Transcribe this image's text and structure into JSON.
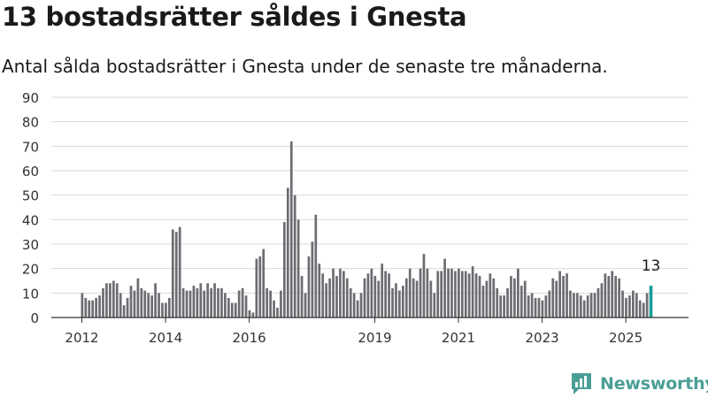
{
  "title": "13 bostadsrätter såldes i Gnesta",
  "subtitle": "Antal sålda bostadsrätter i Gnesta under de senaste tre månaderna.",
  "brand": "Newsworthy",
  "chart_data": {
    "type": "bar",
    "y_ticks": [
      0,
      10,
      20,
      30,
      40,
      50,
      60,
      70,
      80,
      90
    ],
    "ylim": [
      0,
      90
    ],
    "x_tick_labels": [
      "2012",
      "2014",
      "2016",
      "2019",
      "2021",
      "2023",
      "2025"
    ],
    "grid": true,
    "colors": {
      "bar": "#6d6c72",
      "highlight": "#1a9c96",
      "grid": "#d9d9d9",
      "brand": "#4a9e95"
    },
    "series": [
      {
        "start": "2012-01",
        "values": [
          10,
          8,
          7,
          7,
          8,
          9,
          12,
          14,
          14,
          15,
          14,
          10,
          5,
          8,
          13,
          11,
          16,
          12,
          11,
          10,
          9,
          14,
          10,
          6,
          6,
          8,
          36,
          35,
          37,
          12,
          11,
          11,
          13,
          12,
          14,
          11,
          14,
          12,
          14,
          12,
          12,
          10,
          8,
          6,
          6,
          11,
          12,
          9,
          3,
          2,
          24,
          25,
          28,
          12,
          11,
          7,
          4,
          11,
          39,
          53,
          72,
          50,
          40,
          17,
          10,
          25,
          31,
          42,
          22,
          18,
          14,
          16,
          20,
          17,
          20,
          19,
          16,
          12,
          10,
          7,
          10,
          16,
          18,
          20,
          17,
          15,
          22,
          19,
          18,
          12,
          14,
          11,
          13,
          16,
          20,
          16,
          15,
          20,
          26,
          20,
          15,
          10,
          19,
          19,
          24,
          20,
          20,
          19,
          20,
          19,
          19,
          18,
          21,
          18,
          17,
          13,
          15,
          18,
          16,
          12,
          9,
          9,
          12,
          17,
          16,
          20,
          13,
          15,
          9,
          10,
          8,
          8,
          7,
          9,
          11,
          16,
          15,
          19,
          17,
          18,
          11,
          10,
          10,
          9,
          7,
          9,
          10,
          10,
          12,
          14,
          18,
          17,
          19,
          17,
          16,
          11,
          8,
          9,
          11,
          10,
          7,
          6,
          10,
          13
        ]
      }
    ],
    "highlight_label": "13"
  }
}
